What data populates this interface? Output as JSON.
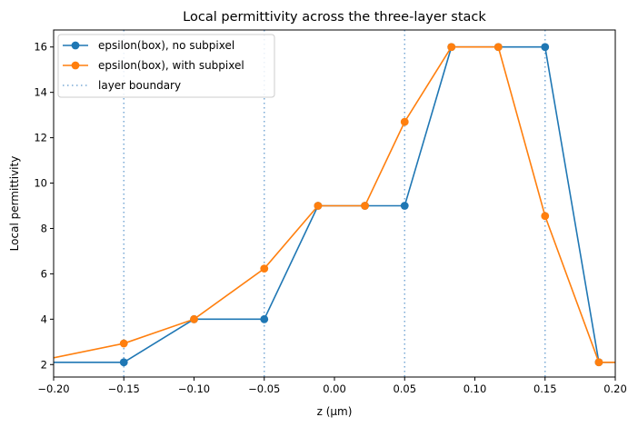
{
  "chart_data": {
    "type": "line",
    "title": "Local permittivity across the three-layer stack",
    "xlabel": "z (µm)",
    "ylabel": "Local permittivity",
    "xlim": [
      -0.2,
      0.2
    ],
    "ylim": [
      1.45,
      16.75
    ],
    "xticks": [
      -0.2,
      -0.15,
      -0.1,
      -0.05,
      0.0,
      0.05,
      0.1,
      0.15,
      0.2
    ],
    "xtick_labels": [
      "−0.20",
      "−0.15",
      "−0.10",
      "−0.05",
      "0.00",
      "0.05",
      "0.10",
      "0.15",
      "0.20"
    ],
    "yticks": [
      2,
      4,
      6,
      8,
      10,
      12,
      14,
      16
    ],
    "ytick_labels": [
      "2",
      "4",
      "6",
      "8",
      "10",
      "12",
      "14",
      "16"
    ],
    "grid": false,
    "legend_position": "top-left",
    "series": [
      {
        "name": "epsilon(box), no subpixel",
        "color": "#1f77b4",
        "style": "solid",
        "marker": "circle",
        "x": [
          -0.2,
          -0.15,
          -0.1,
          -0.05,
          -0.0117,
          0.0217,
          0.05,
          0.0833,
          0.1167,
          0.15,
          0.1883,
          0.2
        ],
        "y": [
          2.1,
          2.1,
          4.0,
          4.0,
          9.0,
          9.0,
          9.0,
          16.0,
          16.0,
          16.0,
          2.1,
          2.1
        ],
        "marker_indices": [
          1,
          2,
          3,
          4,
          5,
          6,
          7,
          8,
          9,
          10
        ]
      },
      {
        "name": "epsilon(box), with subpixel",
        "color": "#ff7f0e",
        "style": "solid",
        "marker": "circle",
        "x": [
          -0.2,
          -0.15,
          -0.1,
          -0.05,
          -0.0117,
          0.0217,
          0.05,
          0.0833,
          0.1167,
          0.15,
          0.1883,
          0.2
        ],
        "y": [
          2.3,
          2.93,
          4.0,
          6.23,
          9.0,
          9.0,
          12.7,
          16.0,
          16.0,
          8.55,
          2.1,
          2.1
        ],
        "marker_indices": [
          1,
          2,
          3,
          4,
          5,
          6,
          7,
          8,
          9,
          10
        ]
      },
      {
        "name": "layer boundary",
        "color": "#7aaad6",
        "style": "dotted",
        "vlines": [
          -0.15,
          -0.05,
          0.05,
          0.15
        ]
      }
    ]
  }
}
